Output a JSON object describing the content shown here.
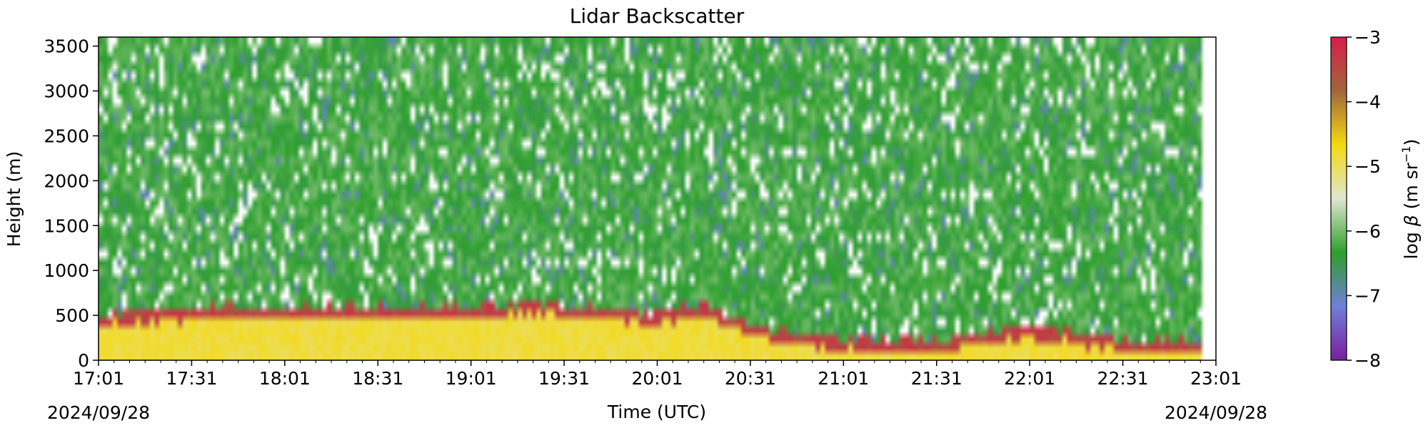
{
  "chart_data": {
    "type": "heatmap",
    "title": "Lidar Backscatter",
    "xlabel": "Time (UTC)",
    "ylabel": "Height (m)",
    "x_start_date": "2024/09/28",
    "x_end_date": "2024/09/28",
    "x_tick_labels": [
      "17:01",
      "17:31",
      "18:01",
      "18:31",
      "19:01",
      "19:31",
      "20:01",
      "20:31",
      "21:01",
      "21:31",
      "22:01",
      "22:31",
      "23:01"
    ],
    "xlim": [
      "17:01",
      "23:01"
    ],
    "y_ticks": [
      0,
      500,
      1000,
      1500,
      2000,
      2500,
      3000,
      3500
    ],
    "ylim": [
      0,
      3600
    ],
    "colorbar": {
      "label_prefix": "log ",
      "label_symbol": "β",
      "label_units": " (m sr",
      "label_exponent": "−1",
      "label_close": ")",
      "ticks": [
        "−3",
        "−4",
        "−5",
        "−6",
        "−7",
        "−8"
      ],
      "range": [
        -8,
        -3
      ],
      "colors": [
        "#7a1fa0",
        "#6f7fd8",
        "#2ea02c",
        "#dfe6d0",
        "#f5d90f",
        "#a0663c",
        "#d81e4a"
      ]
    },
    "boundary_layer_top_m": [
      {
        "time": "17:01",
        "height": 470
      },
      {
        "time": "17:31",
        "height": 560
      },
      {
        "time": "18:01",
        "height": 560
      },
      {
        "time": "18:31",
        "height": 560
      },
      {
        "time": "19:01",
        "height": 580
      },
      {
        "time": "19:31",
        "height": 600
      },
      {
        "time": "20:01",
        "height": 500
      },
      {
        "time": "20:16",
        "height": 600
      },
      {
        "time": "20:31",
        "height": 350
      },
      {
        "time": "21:01",
        "height": 200
      },
      {
        "time": "21:31",
        "height": 200
      },
      {
        "time": "22:01",
        "height": 350
      },
      {
        "time": "22:31",
        "height": 200
      },
      {
        "time": "23:01",
        "height": 200
      }
    ]
  }
}
